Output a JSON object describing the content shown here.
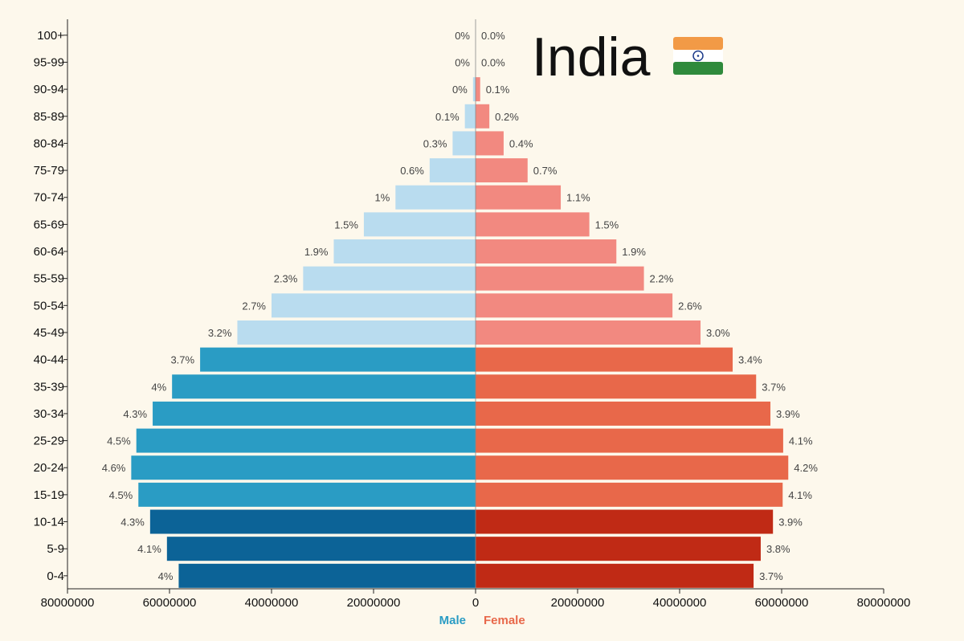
{
  "chart_data": {
    "type": "bar",
    "title": "India",
    "title_icon": "india-flag-icon",
    "orientation": "horizontal-population-pyramid",
    "categories": [
      "100+",
      "95-99",
      "90-94",
      "85-89",
      "80-84",
      "75-79",
      "70-74",
      "65-69",
      "60-64",
      "55-59",
      "50-54",
      "45-49",
      "40-44",
      "35-39",
      "30-34",
      "25-29",
      "20-24",
      "15-19",
      "10-14",
      "5-9",
      "0-4"
    ],
    "series": [
      {
        "name": "Male",
        "color": "#2a9cc4",
        "values": [
          0,
          0,
          500000,
          2100000,
          4500000,
          9000000,
          15700000,
          21900000,
          27800000,
          33800000,
          40000000,
          46700000,
          54000000,
          59500000,
          63300000,
          66500000,
          67500000,
          66100000,
          63800000,
          60500000,
          58200000
        ],
        "labels": [
          "0%",
          "0%",
          "0%",
          "0.1%",
          "0.3%",
          "0.6%",
          "1%",
          "1.5%",
          "1.9%",
          "2.3%",
          "2.7%",
          "3.2%",
          "3.7%",
          "4%",
          "4.3%",
          "4.5%",
          "4.6%",
          "4.5%",
          "4.3%",
          "4.1%",
          "4%"
        ]
      },
      {
        "name": "Female",
        "color": "#e8684a",
        "values": [
          0,
          0,
          900000,
          2700000,
          5500000,
          10200000,
          16700000,
          22300000,
          27600000,
          33000000,
          38600000,
          44100000,
          50400000,
          55000000,
          57800000,
          60300000,
          61300000,
          60200000,
          58300000,
          55900000,
          54500000
        ],
        "labels": [
          "0.0%",
          "0.0%",
          "0.1%",
          "0.2%",
          "0.4%",
          "0.7%",
          "1.1%",
          "1.5%",
          "1.9%",
          "2.2%",
          "2.6%",
          "3.0%",
          "3.4%",
          "3.7%",
          "3.9%",
          "4.1%",
          "4.2%",
          "4.1%",
          "3.9%",
          "3.8%",
          "3.7%"
        ]
      }
    ],
    "band_colors": {
      "male": [
        "#b9dcef",
        "#2a9cc4",
        "#0c6397"
      ],
      "female": [
        "#f28980",
        "#e8684a",
        "#c02a15"
      ]
    },
    "xlim": [
      -80000000,
      80000000
    ],
    "xticks": [
      -80000000,
      -60000000,
      -40000000,
      -20000000,
      0,
      20000000,
      40000000,
      60000000,
      80000000
    ],
    "xtick_labels": [
      "80000000",
      "60000000",
      "40000000",
      "20000000",
      "0",
      "20000000",
      "40000000",
      "60000000",
      "80000000"
    ],
    "legend": {
      "placement": "bottom-center",
      "items": [
        "Male",
        "Female"
      ]
    },
    "legend_colors": {
      "male": "#2a9cc4",
      "female": "#e8684a"
    },
    "grid": false,
    "xlabel": "",
    "ylabel": ""
  }
}
